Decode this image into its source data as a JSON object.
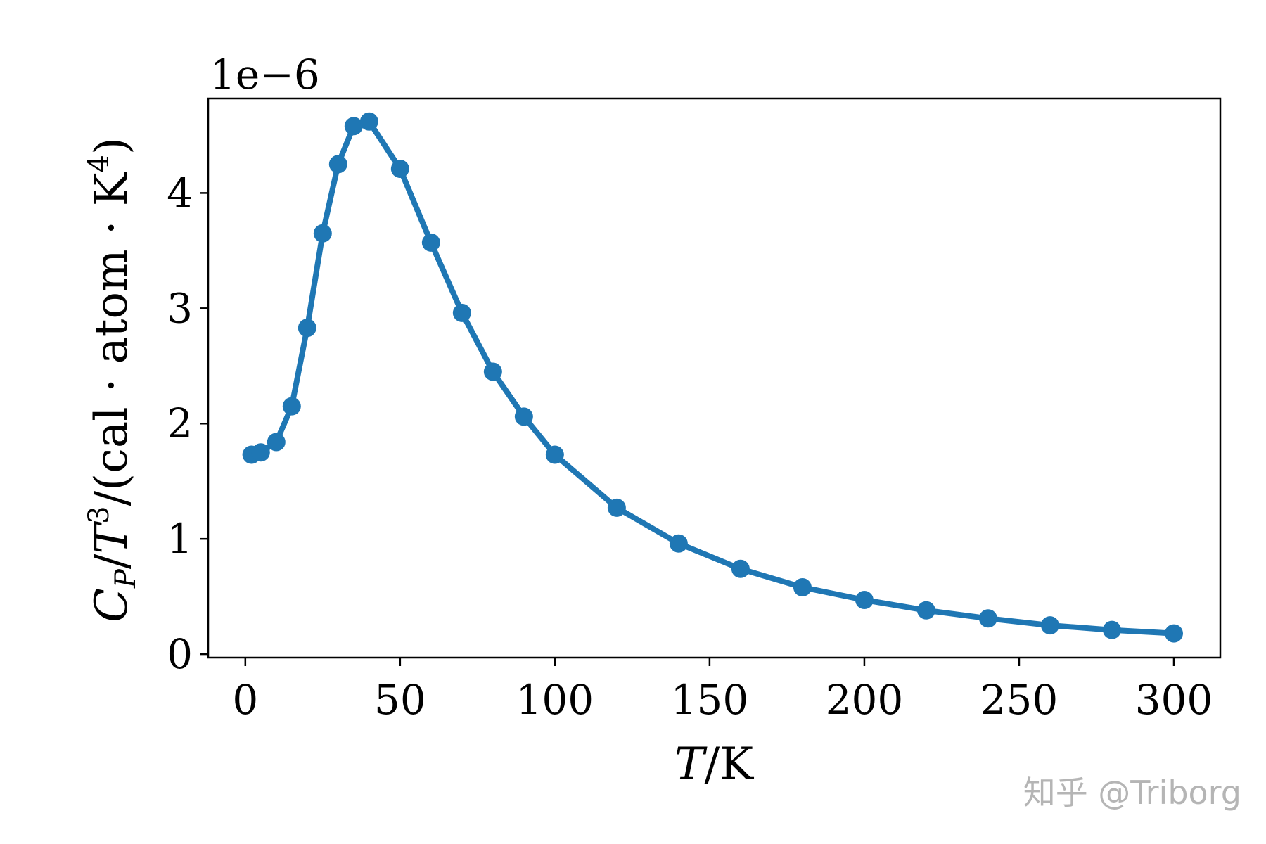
{
  "chart_data": {
    "type": "line",
    "xlabel_italic": "T",
    "xlabel_unit": "/K",
    "ylabel_c": "C",
    "ylabel_sub": "P",
    "ylabel_slash": "/",
    "ylabel_t": "T",
    "ylabel_exp3": "3",
    "ylabel_unit": "/(cal · atom · K",
    "ylabel_exp4": "4",
    "ylabel_close": ")",
    "y_offset_text": "1e−6",
    "y_scale": 1e-06,
    "xlim": [
      -12,
      315
    ],
    "ylim": [
      -0.03,
      4.82
    ],
    "xticks": [
      0,
      50,
      100,
      150,
      200,
      250,
      300
    ],
    "yticks": [
      0,
      1,
      2,
      3,
      4
    ],
    "grid": false,
    "color": "#1f77b4",
    "series": [
      {
        "x": [
          2,
          5,
          10,
          15,
          20,
          25,
          30,
          35,
          40,
          50,
          60,
          70,
          80,
          90,
          100,
          120,
          140,
          160,
          180,
          200,
          220,
          240,
          260,
          280,
          300
        ],
        "y": [
          1.73,
          1.75,
          1.84,
          2.15,
          2.83,
          3.65,
          4.25,
          4.58,
          4.62,
          4.21,
          3.57,
          2.96,
          2.45,
          2.06,
          1.73,
          1.27,
          0.96,
          0.74,
          0.58,
          0.47,
          0.38,
          0.31,
          0.25,
          0.21,
          0.18
        ]
      }
    ]
  },
  "watermark": "知乎 @Triborg"
}
